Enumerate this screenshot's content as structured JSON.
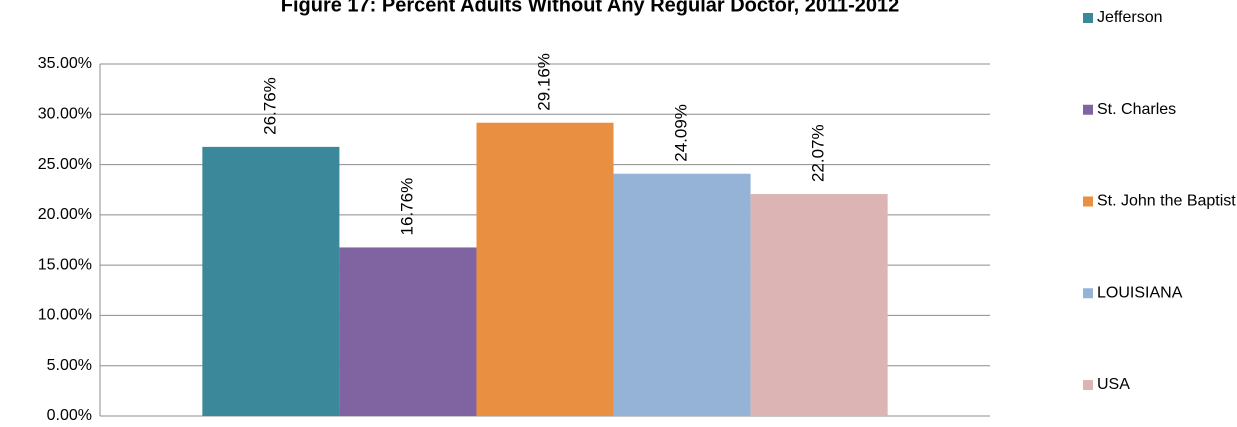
{
  "chart_data": {
    "type": "bar",
    "title": "Figure 17: Percent Adults Without Any Regular Doctor, 2011-2012",
    "categories": [
      null
    ],
    "series": [
      {
        "name": "Jefferson",
        "color": "#3a8899",
        "values": [
          26.76
        ],
        "value_labels": [
          "26.76%"
        ]
      },
      {
        "name": "St. Charles",
        "color": "#8064a2",
        "values": [
          16.76
        ],
        "value_labels": [
          "16.76%"
        ]
      },
      {
        "name": "St. John the Baptist",
        "color": "#e98f41",
        "values": [
          29.16
        ],
        "value_labels": [
          "29.16%"
        ]
      },
      {
        "name": "LOUISIANA",
        "color": "#95b3d7",
        "values": [
          24.09
        ],
        "value_labels": [
          "24.09%"
        ]
      },
      {
        "name": "USA",
        "color": "#dcb4b4",
        "values": [
          22.07
        ],
        "value_labels": [
          "22.07%"
        ]
      }
    ],
    "ylim": [
      0,
      35
    ],
    "yticks": [
      {
        "value": 0,
        "label": "0.00%"
      },
      {
        "value": 5,
        "label": "5.00%"
      },
      {
        "value": 10,
        "label": "10.00%"
      },
      {
        "value": 15,
        "label": "15.00%"
      },
      {
        "value": 20,
        "label": "20.00%"
      },
      {
        "value": 25,
        "label": "25.00%"
      },
      {
        "value": 30,
        "label": "30.00%"
      },
      {
        "value": 35,
        "label": "35.00%"
      }
    ],
    "grid": true,
    "legend": "right"
  }
}
